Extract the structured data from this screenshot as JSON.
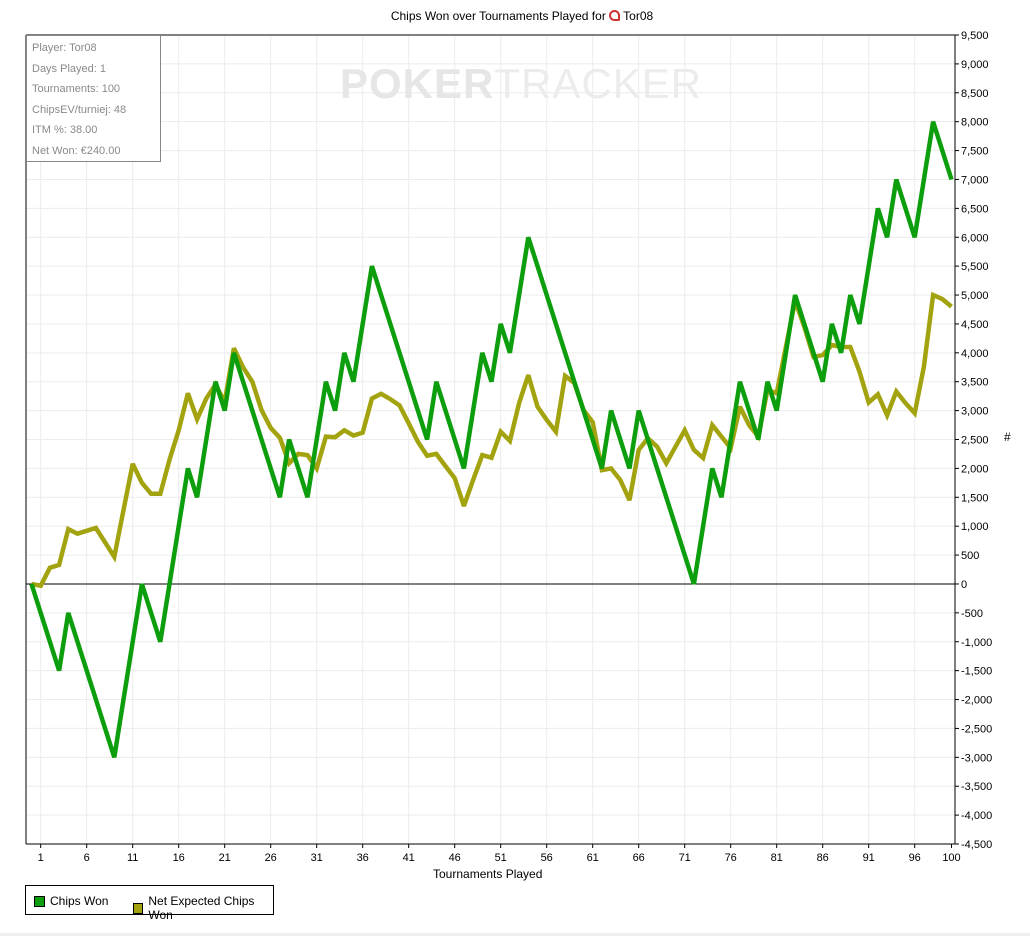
{
  "title": "Chips Won over Tournaments Played for",
  "player_name": "Tor08",
  "watermark": {
    "bold": "POKER",
    "light": "TRACKER"
  },
  "info": [
    "Player: Tor08",
    "Days Played: 1",
    "Tournaments: 100",
    "ChipsEV/turniej: 48",
    "ITM %: 38.00",
    "Net Won: €240.00"
  ],
  "chart_data": {
    "type": "line",
    "title": "Chips Won over Tournaments Played for Tor08",
    "xlabel": "Tournaments Played",
    "ylabel": "#",
    "xlim": [
      0,
      100
    ],
    "ylim": [
      -4500,
      9500
    ],
    "x_ticks": [
      "1",
      "6",
      "11",
      "16",
      "21",
      "26",
      "31",
      "36",
      "41",
      "46",
      "51",
      "56",
      "61",
      "66",
      "71",
      "76",
      "81",
      "86",
      "91",
      "96",
      "100"
    ],
    "y_ticks": [
      "9,500",
      "9,000",
      "8,500",
      "8,000",
      "7,500",
      "7,000",
      "6,500",
      "6,000",
      "5,500",
      "5,000",
      "4,500",
      "4,000",
      "3,500",
      "3,000",
      "2,500",
      "2,000",
      "1,500",
      "1,000",
      "500",
      "0",
      "-500",
      "-1,000",
      "-1,500",
      "-2,000",
      "-2,500",
      "-3,000",
      "-3,500",
      "-4,000",
      "-4,500"
    ],
    "grid": true,
    "legend_position": "bottom-left",
    "series": [
      {
        "name": "Chips Won",
        "color": "#0d9e0d",
        "values": [
          0,
          -500,
          -1000,
          -1500,
          -500,
          -1000,
          -1500,
          -2000,
          -2500,
          -3000,
          -2000,
          -1000,
          0,
          -500,
          -1000,
          0,
          1000,
          2000,
          1500,
          2500,
          3500,
          3000,
          4000,
          3500,
          3000,
          2500,
          2000,
          1500,
          2500,
          2000,
          1500,
          2500,
          3500,
          3000,
          4000,
          3500,
          4500,
          5500,
          5000,
          4500,
          4000,
          3500,
          3000,
          2500,
          3500,
          3000,
          2500,
          2000,
          3000,
          4000,
          3500,
          4500,
          4000,
          5000,
          6000,
          5500,
          5000,
          4500,
          4000,
          3500,
          3000,
          2500,
          2000,
          3000,
          2500,
          2000,
          3000,
          2500,
          2000,
          1500,
          1000,
          500,
          0,
          1000,
          2000,
          1500,
          2500,
          3500,
          3000,
          2500,
          3500,
          3000,
          4000,
          5000,
          4500,
          4000,
          3500,
          4500,
          4000,
          5000,
          4500,
          5500,
          6500,
          6000,
          7000,
          6500,
          6000,
          7000,
          8000,
          7500,
          7000
        ]
      },
      {
        "name": "Net Expected Chips Won",
        "color": "#a3a30f",
        "values": [
          0,
          -30,
          280,
          330,
          950,
          870,
          920,
          970,
          720,
          470,
          1280,
          2080,
          1750,
          1560,
          1560,
          2150,
          2660,
          3300,
          2850,
          3210,
          3450,
          3150,
          4080,
          3750,
          3500,
          3010,
          2700,
          2530,
          2090,
          2250,
          2230,
          2000,
          2550,
          2540,
          2660,
          2570,
          2620,
          3210,
          3290,
          3200,
          3090,
          2780,
          2460,
          2220,
          2250,
          2040,
          1830,
          1350,
          1800,
          2230,
          2185,
          2635,
          2475,
          3130,
          3615,
          3070,
          2840,
          2635,
          3600,
          3480,
          3010,
          2800,
          1970,
          2000,
          1800,
          1450,
          2320,
          2520,
          2375,
          2090,
          2375,
          2660,
          2320,
          2180,
          2750,
          2550,
          2350,
          3070,
          2750,
          2550,
          3360,
          3300,
          4100,
          4900,
          4450,
          3930,
          3960,
          4135,
          4100,
          4100,
          3675,
          3140,
          3280,
          2920,
          3330,
          3130,
          2955,
          3760,
          5000,
          4930,
          4800
        ]
      }
    ]
  }
}
